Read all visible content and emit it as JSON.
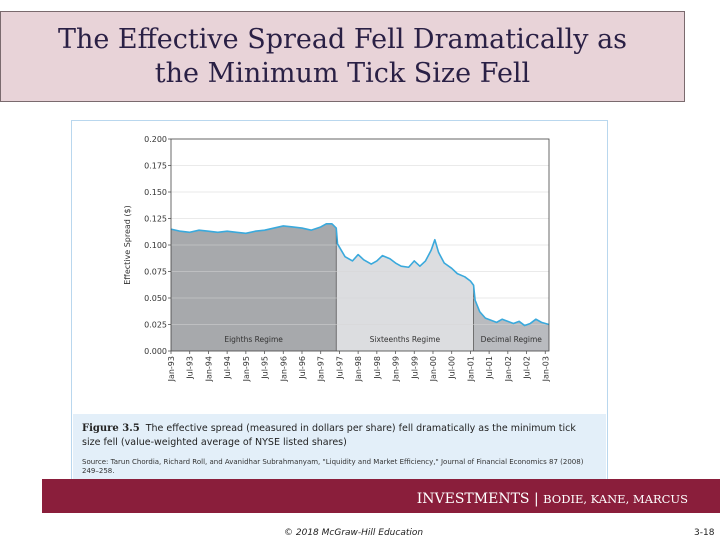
{
  "slide": {
    "title_line1": "The Effective Spread Fell Dramatically as",
    "title_line2": "the Minimum Tick Size Fell",
    "footer_brand": "INVESTMENTS",
    "footer_sep": " | ",
    "footer_authors": "BODIE, KANE, MARCUS",
    "copyright": "© 2018 McGraw-Hill Education",
    "page_number": "3-18"
  },
  "figure": {
    "label": "Figure 3.5",
    "caption": "The effective spread (measured in dollars per share) fell dramatically as the minimum tick size fell (value-weighted average of NYSE listed shares)",
    "source": "Source: Tarun Chordia, Richard Roll, and Avanidhar Subrahmanyam, \"Liquidity and Market Efficiency,\" Journal of Financial Economics 87 (2008) 249–258."
  },
  "chart_data": {
    "type": "area",
    "ylabel": "Effective Spread ($)",
    "xlabel": "",
    "ylim": [
      0,
      0.2
    ],
    "yticks": [
      "0.000",
      "0.025",
      "0.050",
      "0.075",
      "0.100",
      "0.125",
      "0.150",
      "0.175",
      "0.200"
    ],
    "xticks": [
      "Jan-93",
      "Jul-93",
      "Jan-94",
      "Jul-94",
      "Jan-95",
      "Jul-95",
      "Jan-96",
      "Jul-96",
      "Jan-97",
      "Jul-97",
      "Jan-98",
      "Jul-98",
      "Jan-99",
      "Jul-99",
      "Jan-00",
      "Jul-00",
      "Jan-01",
      "Jul-01",
      "Jan-02",
      "Jul-02",
      "Jan-03"
    ],
    "grid": true,
    "regimes": [
      {
        "name": "Eighths Regime",
        "color": "#a7a9ac",
        "from": 0,
        "to": 8.83
      },
      {
        "name": "Sixteenths Regime",
        "color": "#dcdde0",
        "from": 8.83,
        "to": 16.17
      },
      {
        "name": "Decimal Regime",
        "color": "#b9bbbf",
        "from": 16.17,
        "to": 20.2
      }
    ],
    "series": [
      {
        "color": "#3aa9dc",
        "points": [
          [
            0.0,
            0.115
          ],
          [
            0.5,
            0.113
          ],
          [
            1.0,
            0.112
          ],
          [
            1.5,
            0.114
          ],
          [
            2.0,
            0.113
          ],
          [
            2.5,
            0.112
          ],
          [
            3.0,
            0.113
          ],
          [
            3.5,
            0.112
          ],
          [
            4.0,
            0.111
          ],
          [
            4.5,
            0.113
          ],
          [
            5.0,
            0.114
          ],
          [
            5.5,
            0.116
          ],
          [
            6.0,
            0.118
          ],
          [
            6.5,
            0.117
          ],
          [
            7.0,
            0.116
          ],
          [
            7.5,
            0.114
          ],
          [
            8.0,
            0.117
          ],
          [
            8.3,
            0.12
          ],
          [
            8.6,
            0.12
          ],
          [
            8.83,
            0.116
          ],
          [
            8.9,
            0.101
          ],
          [
            9.3,
            0.089
          ],
          [
            9.7,
            0.085
          ],
          [
            10.0,
            0.091
          ],
          [
            10.3,
            0.086
          ],
          [
            10.7,
            0.082
          ],
          [
            11.0,
            0.085
          ],
          [
            11.3,
            0.09
          ],
          [
            11.7,
            0.087
          ],
          [
            12.0,
            0.083
          ],
          [
            12.3,
            0.08
          ],
          [
            12.7,
            0.079
          ],
          [
            13.0,
            0.085
          ],
          [
            13.3,
            0.08
          ],
          [
            13.6,
            0.085
          ],
          [
            13.9,
            0.095
          ],
          [
            14.1,
            0.105
          ],
          [
            14.3,
            0.093
          ],
          [
            14.6,
            0.083
          ],
          [
            15.0,
            0.078
          ],
          [
            15.3,
            0.073
          ],
          [
            15.7,
            0.07
          ],
          [
            16.0,
            0.066
          ],
          [
            16.17,
            0.062
          ],
          [
            16.25,
            0.048
          ],
          [
            16.5,
            0.037
          ],
          [
            16.8,
            0.031
          ],
          [
            17.1,
            0.029
          ],
          [
            17.4,
            0.027
          ],
          [
            17.7,
            0.03
          ],
          [
            18.0,
            0.028
          ],
          [
            18.3,
            0.026
          ],
          [
            18.6,
            0.028
          ],
          [
            18.9,
            0.024
          ],
          [
            19.2,
            0.026
          ],
          [
            19.5,
            0.03
          ],
          [
            19.8,
            0.027
          ],
          [
            20.2,
            0.025
          ]
        ]
      }
    ]
  }
}
